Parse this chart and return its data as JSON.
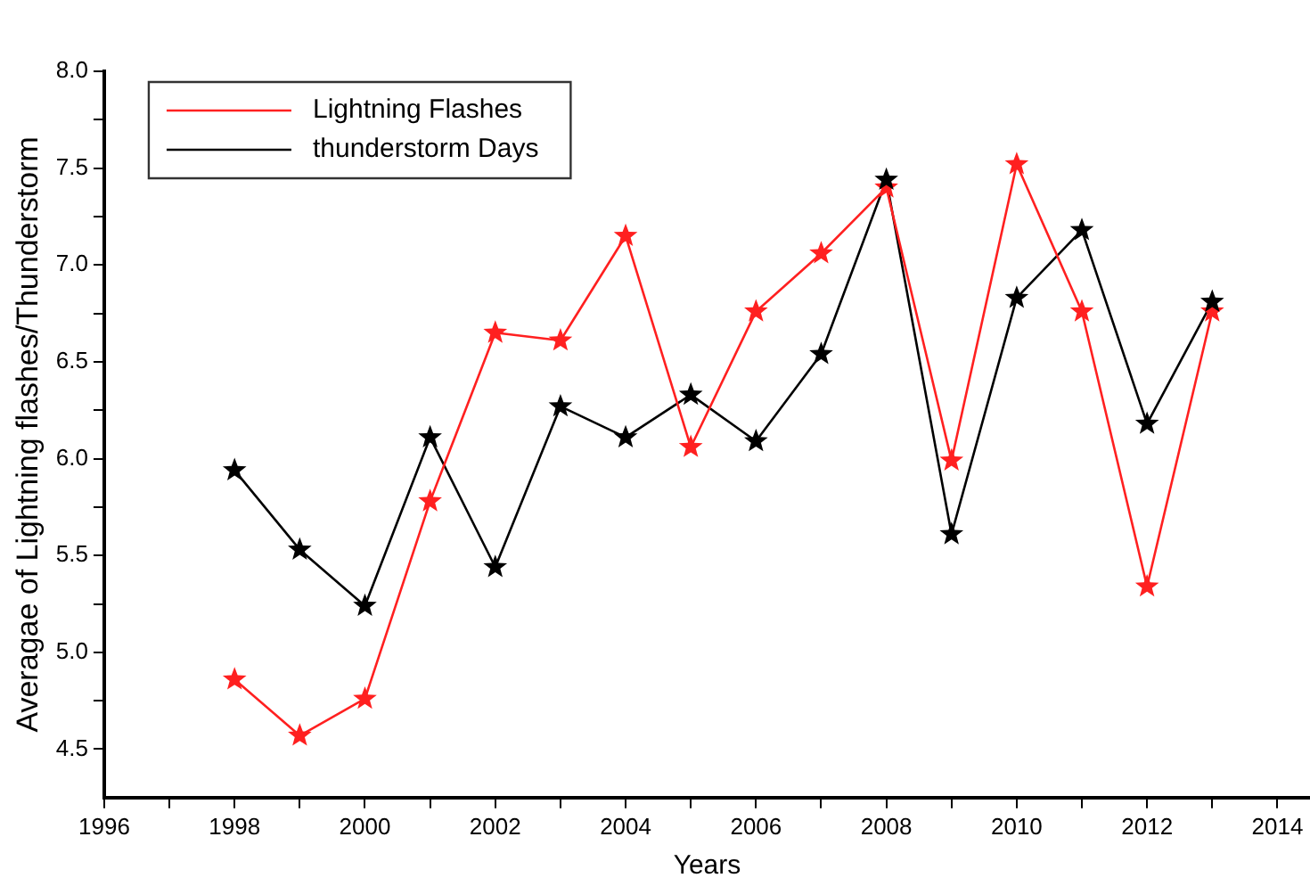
{
  "chart_data": {
    "type": "line",
    "xlabel": "Years",
    "ylabel": "Averagae of Lightning flashes/Thunderstorm",
    "x": [
      1998,
      1999,
      2000,
      2001,
      2002,
      2003,
      2004,
      2005,
      2006,
      2007,
      2008,
      2009,
      2010,
      2011,
      2012,
      2013
    ],
    "series": [
      {
        "name": "Lightning Flashes",
        "color": "#ff2020",
        "values": [
          4.86,
          4.57,
          4.76,
          5.78,
          6.65,
          6.61,
          7.15,
          6.06,
          6.76,
          7.06,
          7.4,
          5.99,
          7.52,
          6.76,
          5.34,
          6.76
        ]
      },
      {
        "name": "thunderstorm Days",
        "color": "#000000",
        "values": [
          5.94,
          5.53,
          5.24,
          6.11,
          5.44,
          6.27,
          6.11,
          6.33,
          6.09,
          6.54,
          7.44,
          5.61,
          6.83,
          7.18,
          6.18,
          6.81
        ]
      }
    ],
    "xlim": [
      1996,
      2014.5
    ],
    "xticks": [
      1996,
      {
        "value": 1997,
        "label": null
      },
      1998,
      {
        "value": 1999,
        "label": null
      },
      2000,
      {
        "value": 2001,
        "label": null
      },
      2002,
      {
        "value": 2003,
        "label": null
      },
      2004,
      {
        "value": 2005,
        "label": null
      },
      2006,
      {
        "value": 2007,
        "label": null
      },
      2008,
      {
        "value": 2009,
        "label": null
      },
      2010,
      {
        "value": 2011,
        "label": null
      },
      2012,
      {
        "value": 2013,
        "label": null
      },
      2014
    ],
    "ylim": [
      4.25,
      8.0
    ],
    "yticks": [
      4.5,
      {
        "value": 4.75,
        "label": null
      },
      {
        "value": 5,
        "label": "5.0"
      },
      {
        "value": 5.25,
        "label": null
      },
      5.5,
      {
        "value": 5.75,
        "label": null
      },
      {
        "value": 6,
        "label": "6.0"
      },
      {
        "value": 6.25,
        "label": null
      },
      6.5,
      {
        "value": 6.75,
        "label": null
      },
      {
        "value": 7,
        "label": "7.0"
      },
      {
        "value": 7.25,
        "label": null
      },
      7.5,
      {
        "value": 7.75,
        "label": null
      },
      {
        "value": 8,
        "label": "8.0"
      }
    ],
    "grid": false,
    "legend": "top left",
    "marker": "star",
    "line_style": "solid"
  }
}
